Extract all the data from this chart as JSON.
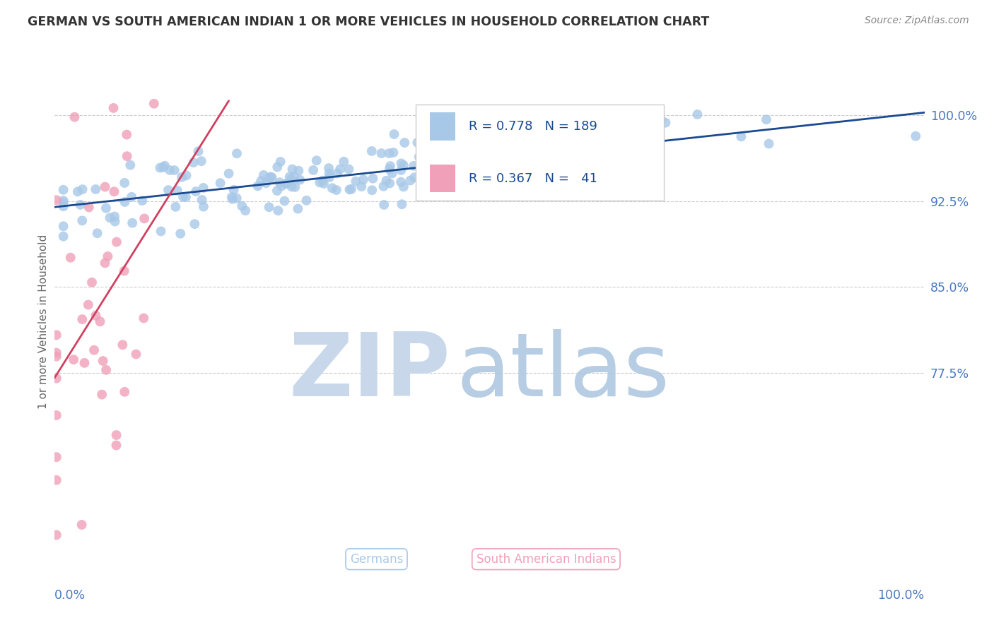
{
  "title": "GERMAN VS SOUTH AMERICAN INDIAN 1 OR MORE VEHICLES IN HOUSEHOLD CORRELATION CHART",
  "source": "Source: ZipAtlas.com",
  "ylabel": "1 or more Vehicles in Household",
  "ytick_values": [
    0.775,
    0.85,
    0.925,
    1.0
  ],
  "ytick_labels": [
    "77.5%",
    "85.0%",
    "92.5%",
    "100.0%"
  ],
  "xlim": [
    0.0,
    1.0
  ],
  "ylim": [
    0.6,
    1.04
  ],
  "R_german": 0.778,
  "N_german": 189,
  "R_sai": 0.367,
  "N_sai": 41,
  "blue_scatter_color": "#a8c8e8",
  "blue_line_color": "#1a4a90",
  "pink_scatter_color": "#f0a0b8",
  "pink_line_color": "#d04060",
  "watermark_zip_color": "#c8d8ea",
  "watermark_atlas_color": "#b0c8e0",
  "bg_color": "#ffffff",
  "grid_color": "#cccccc",
  "title_color": "#333333",
  "axis_text_color": "#4878c0",
  "legend_text_color": "#1a4a90",
  "legend_border_color": "#cccccc"
}
